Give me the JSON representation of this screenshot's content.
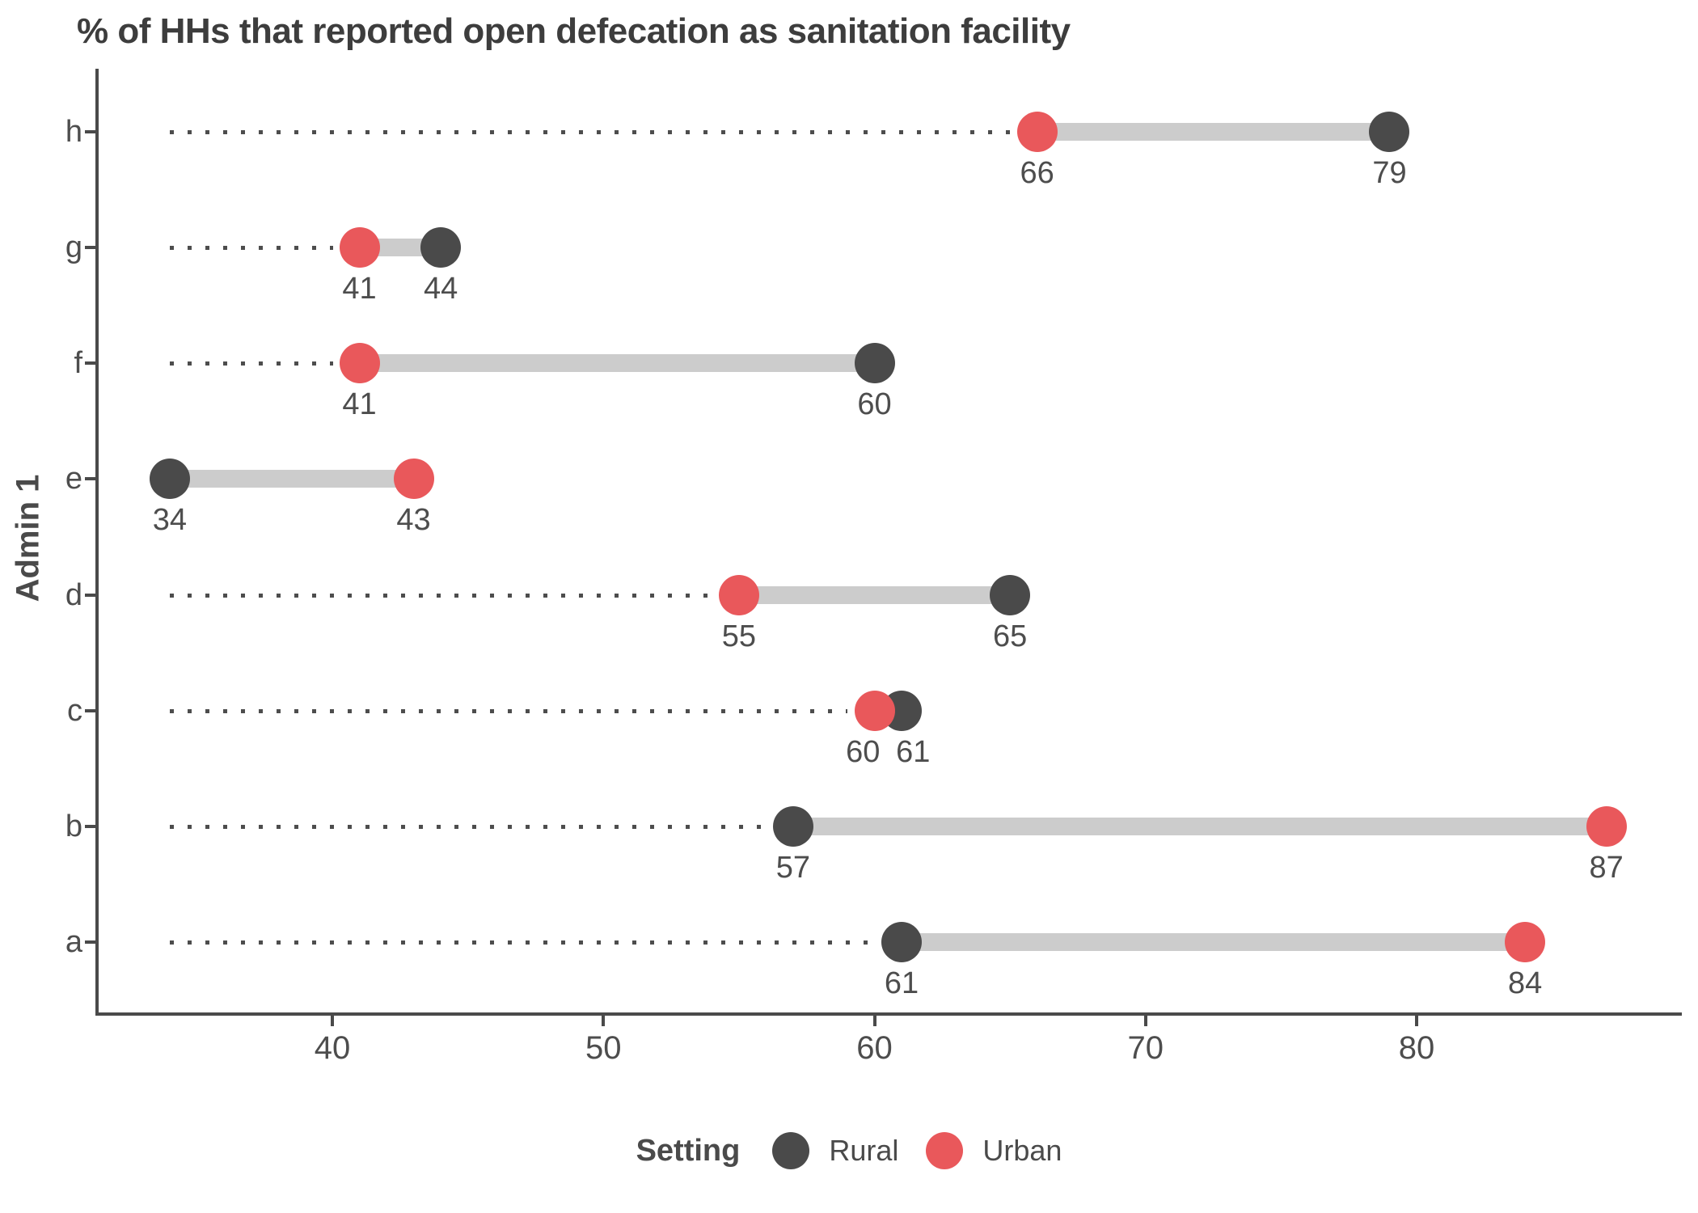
{
  "title": "% of HHs that reported open defecation as sanitation facility",
  "y_axis": {
    "label": "Admin 1",
    "categories": [
      "h",
      "g",
      "f",
      "e",
      "d",
      "c",
      "b",
      "a"
    ]
  },
  "x_axis": {
    "tick_labels": [
      "40",
      "50",
      "60",
      "70",
      "80"
    ]
  },
  "legend": {
    "title": "Setting",
    "items": [
      {
        "label": "Rural",
        "color": "#4a4a4a"
      },
      {
        "label": "Urban",
        "color": "#e9585b"
      }
    ]
  },
  "colors": {
    "rural": "#4a4a4a",
    "urban": "#e9585b",
    "connector": "#cccccc",
    "leader_dots": "#4d4d4d",
    "axis": "#4a4a4a",
    "title_text": "#3d3d3d",
    "label_text": "#4d4d4d"
  },
  "chart_data": {
    "type": "scatter",
    "variant": "dumbbell",
    "title": "% of HHs that reported open defecation as sanitation facility",
    "xlabel": "",
    "ylabel": "Admin 1",
    "categories": [
      "h",
      "g",
      "f",
      "e",
      "d",
      "c",
      "b",
      "a"
    ],
    "series": [
      {
        "name": "Rural",
        "color": "#4a4a4a",
        "values": [
          79,
          44,
          60,
          34,
          65,
          61,
          57,
          61
        ]
      },
      {
        "name": "Urban",
        "color": "#e9585b",
        "values": [
          66,
          41,
          41,
          43,
          55,
          60,
          87,
          84
        ]
      }
    ],
    "point_labels_shown": true,
    "x_ticks": [
      40,
      50,
      60,
      70,
      80
    ],
    "xlim": [
      31.3,
      89.7
    ],
    "leader_line_start_value": 34,
    "grid": "none",
    "legend_position": "bottom",
    "legend_title": "Setting"
  }
}
